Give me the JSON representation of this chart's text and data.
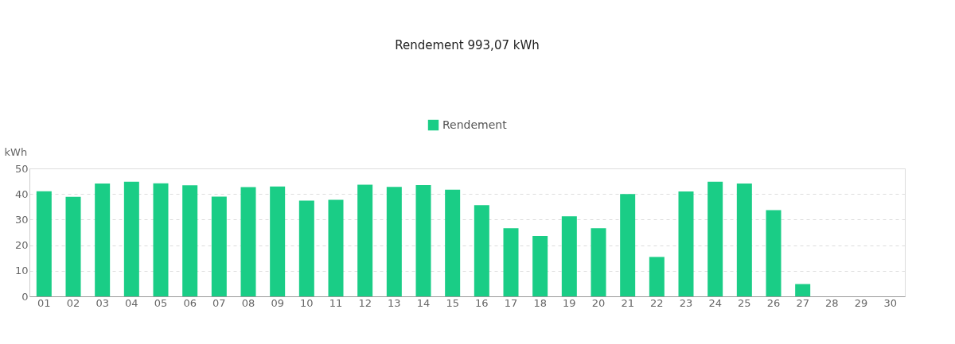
{
  "chart_data": {
    "type": "bar",
    "title": "Rendement 993,07 kWh",
    "ylabel": "kWh",
    "categories": [
      "01",
      "02",
      "03",
      "04",
      "05",
      "06",
      "07",
      "08",
      "09",
      "10",
      "11",
      "12",
      "13",
      "14",
      "15",
      "16",
      "17",
      "18",
      "19",
      "20",
      "21",
      "22",
      "23",
      "24",
      "25",
      "26",
      "27",
      "28",
      "29",
      "30"
    ],
    "series": [
      {
        "name": "Rendement",
        "color": "#1acd86",
        "values": [
          41.1,
          38.9,
          44.1,
          44.8,
          44.2,
          43.4,
          39.0,
          42.7,
          42.9,
          37.4,
          37.7,
          43.6,
          42.8,
          43.5,
          41.7,
          35.6,
          26.6,
          23.6,
          31.3,
          26.6,
          40.0,
          15.4,
          41.0,
          44.8,
          44.1,
          33.7,
          4.8,
          null,
          null,
          null
        ]
      }
    ],
    "ylim": [
      0,
      50
    ],
    "yticks": [
      0,
      10,
      20,
      30,
      40,
      50
    ],
    "grid": "y",
    "legend": "top"
  }
}
